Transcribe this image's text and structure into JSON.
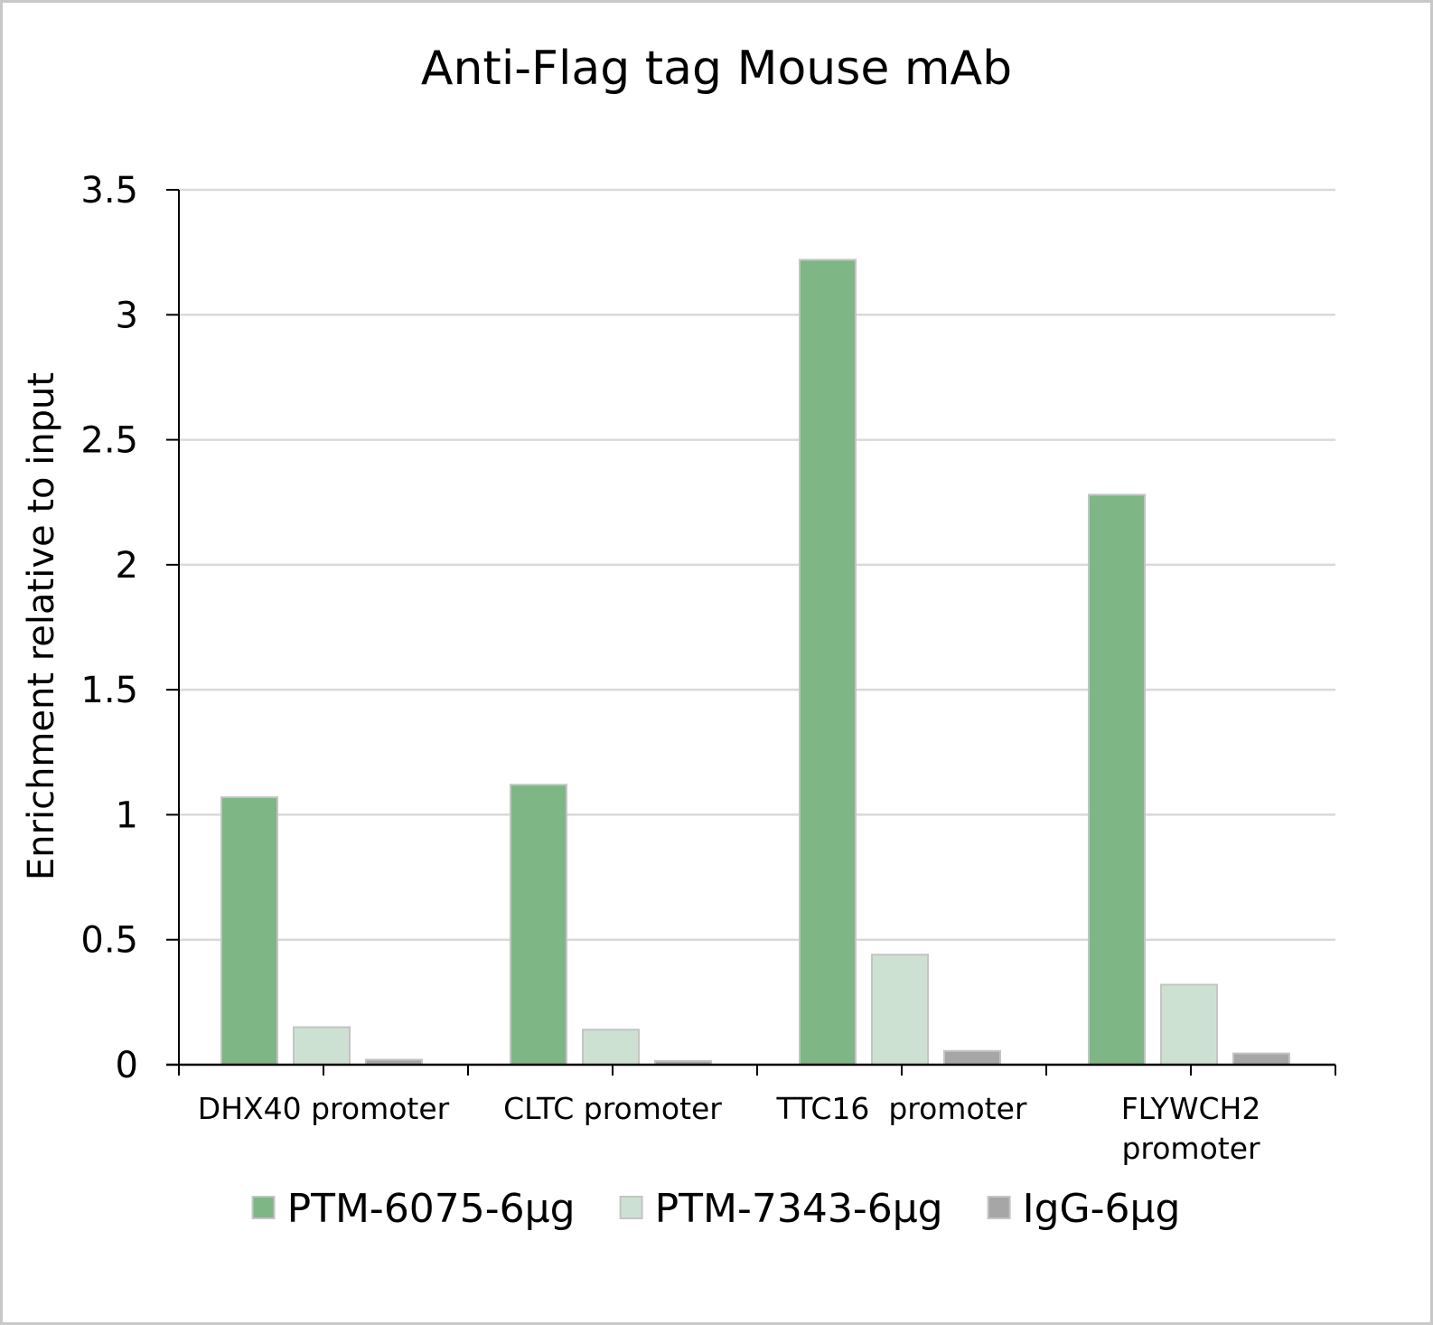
{
  "chart_data": {
    "type": "bar",
    "title": "Anti-Flag tag Mouse mAb",
    "xlabel": "",
    "ylabel": "Enrichment relative to input",
    "ylim": [
      0,
      3.5
    ],
    "yticks": [
      0,
      0.5,
      1,
      1.5,
      2,
      2.5,
      3,
      3.5
    ],
    "ytick_labels": [
      "0",
      "0.5",
      "1",
      "1.5",
      "2",
      "2.5",
      "3",
      "3.5"
    ],
    "categories": [
      "DHX40 promoter",
      "CLTC promoter",
      "TTC16  promoter",
      "FLYWCH2 promoter"
    ],
    "category_lines": [
      [
        "DHX40 promoter"
      ],
      [
        "CLTC promoter"
      ],
      [
        "TTC16  promoter"
      ],
      [
        "FLYWCH2",
        "promoter"
      ]
    ],
    "series": [
      {
        "name": "PTM-6075-6μg",
        "color": "#7eb685",
        "values": [
          1.07,
          1.12,
          3.22,
          2.28
        ]
      },
      {
        "name": "PTM-7343-6μg",
        "color": "#cde1d3",
        "values": [
          0.15,
          0.14,
          0.44,
          0.32
        ]
      },
      {
        "name": "IgG-6μg",
        "color": "#a6a6a6",
        "values": [
          0.02,
          0.015,
          0.055,
          0.045
        ]
      }
    ],
    "grid": true,
    "legend_position": "bottom"
  }
}
